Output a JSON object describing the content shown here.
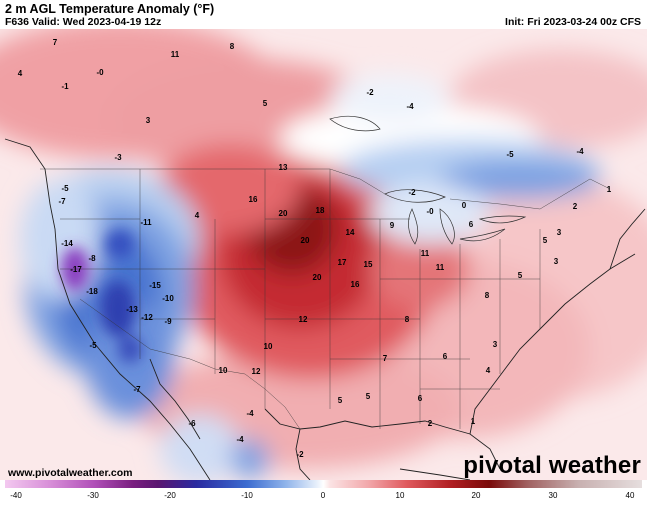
{
  "header": {
    "title": "2 m AGL Temperature Anomaly (°F)",
    "valid": "F636 Valid: Wed 2023-04-19 12z",
    "init": "Init: Fri 2023-03-24 00z CFS"
  },
  "credit": "www.pivotalweather.com",
  "logo": "pivotal weather",
  "colorbar": {
    "ticks": [
      "-40",
      "-30",
      "-20",
      "-10",
      "0",
      "10",
      "20",
      "30",
      "40"
    ]
  },
  "colors": {
    "warm_dark": "#7a0a0a",
    "warm": "#d23a3a",
    "warm_light": "#f5b5b5",
    "neutral": "#ffffff",
    "cool_light": "#b8cff0",
    "cool": "#4f7fd6",
    "cool_dark": "#2a3fb0",
    "extreme_cold": "#8a40c0"
  },
  "map_labels": [
    {
      "v": "11"
    },
    {
      "v": "8"
    },
    {
      "v": "7"
    },
    {
      "v": "-0"
    },
    {
      "v": "4"
    },
    {
      "v": "-1"
    },
    {
      "v": "3"
    },
    {
      "v": "5"
    },
    {
      "v": "-2"
    },
    {
      "v": "-4"
    },
    {
      "v": "-4"
    },
    {
      "v": "-5"
    },
    {
      "v": "-3"
    },
    {
      "v": "-5"
    },
    {
      "v": "-7"
    },
    {
      "v": "-8"
    },
    {
      "v": "-11"
    },
    {
      "v": "-14"
    },
    {
      "v": "-17"
    },
    {
      "v": "-18"
    },
    {
      "v": "-13"
    },
    {
      "v": "-10"
    },
    {
      "v": "-15"
    },
    {
      "v": "-12"
    },
    {
      "v": "-9"
    },
    {
      "v": "13"
    },
    {
      "v": "20"
    },
    {
      "v": "20"
    },
    {
      "v": "18"
    },
    {
      "v": "16"
    },
    {
      "v": "14"
    },
    {
      "v": "15"
    },
    {
      "v": "17"
    },
    {
      "v": "20"
    },
    {
      "v": "16"
    },
    {
      "v": "12"
    },
    {
      "v": "10"
    },
    {
      "v": "9"
    },
    {
      "v": "11"
    },
    {
      "v": "6"
    },
    {
      "v": "5"
    },
    {
      "v": "3"
    },
    {
      "v": "2"
    },
    {
      "v": "1"
    },
    {
      "v": "0"
    },
    {
      "v": "4"
    },
    {
      "v": "-0"
    },
    {
      "v": "-2"
    },
    {
      "v": "-4"
    },
    {
      "v": "10"
    },
    {
      "v": "12"
    },
    {
      "v": "7"
    },
    {
      "v": "8"
    },
    {
      "v": "6"
    },
    {
      "v": "5"
    },
    {
      "v": "-5"
    },
    {
      "v": "-7"
    },
    {
      "v": "-4"
    },
    {
      "v": "-6"
    },
    {
      "v": "-2"
    },
    {
      "v": "11"
    },
    {
      "v": "8"
    },
    {
      "v": "5"
    },
    {
      "v": "3"
    },
    {
      "v": "6"
    },
    {
      "v": "4"
    },
    {
      "v": "3"
    },
    {
      "v": "2"
    },
    {
      "v": "1"
    },
    {
      "v": "5"
    }
  ]
}
